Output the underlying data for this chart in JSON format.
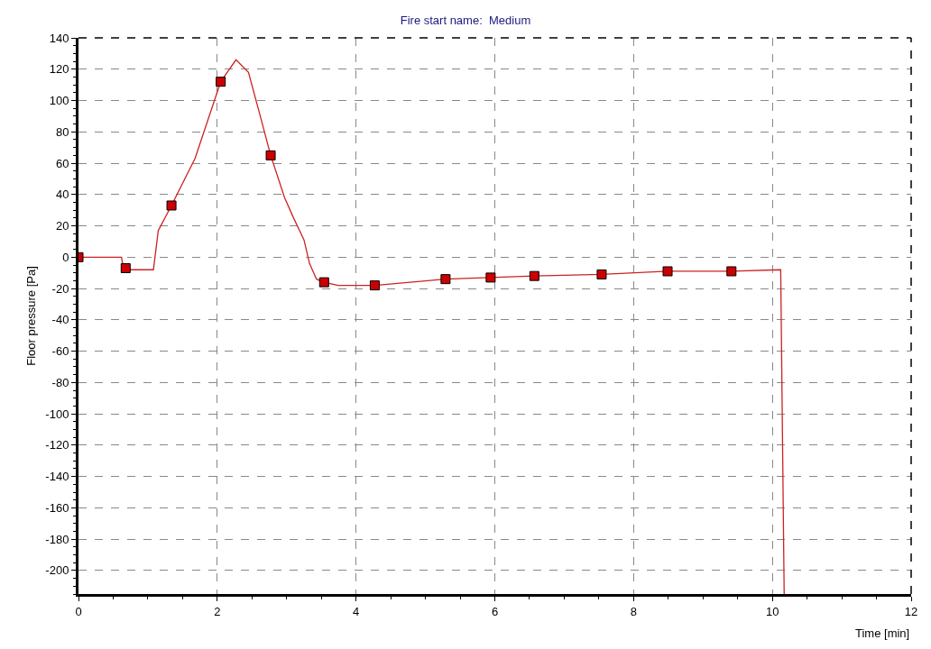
{
  "chart_data": {
    "type": "line",
    "title": "Fire start name:  Medium",
    "xlabel": "Time [min]",
    "ylabel": "Floor pressure [Pa]",
    "xlim": [
      0,
      12
    ],
    "xticks": [
      0,
      2,
      4,
      6,
      8,
      10,
      12
    ],
    "ylim": [
      -215,
      140
    ],
    "yticks": [
      -200,
      -180,
      -160,
      -140,
      -120,
      -100,
      -80,
      -60,
      -40,
      -20,
      0,
      20,
      40,
      60,
      80,
      100,
      120,
      140
    ],
    "grid": true,
    "series": [
      {
        "marker": "none",
        "color": "#cc2222",
        "x": [
          0,
          0.62,
          0.65,
          1.08,
          1.15,
          1.34,
          1.68,
          2.05,
          2.27,
          2.45,
          2.62,
          2.77,
          2.97,
          3.1,
          3.25,
          3.33,
          3.43,
          3.54,
          3.74,
          4.27,
          5.29,
          5.94,
          6.57,
          7.54,
          8.49,
          9.41,
          10.12,
          10.17
        ],
        "values": [
          0,
          0,
          -8,
          -8,
          17,
          33,
          63,
          112,
          126,
          118,
          90,
          65,
          38,
          25,
          11,
          -4,
          -14,
          -16,
          -18,
          -18,
          -14,
          -13,
          -12,
          -11,
          -9,
          -9,
          -8,
          -215
        ]
      },
      {
        "type": "scatter",
        "marker": "square",
        "color": "#cc0000",
        "x": [
          0,
          0.68,
          1.34,
          2.05,
          2.77,
          3.54,
          4.27,
          5.29,
          5.94,
          6.57,
          7.54,
          8.49,
          9.41
        ],
        "values": [
          0,
          -7,
          33,
          112,
          65,
          -16,
          -18,
          -14,
          -13,
          -12,
          -11,
          -9,
          -9
        ]
      }
    ]
  }
}
